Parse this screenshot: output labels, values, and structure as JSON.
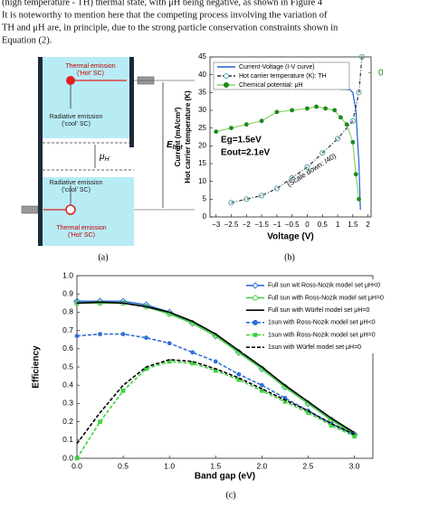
{
  "text": {
    "lines": [
      "(high temperature - TH) thermal state, with μH being negative, as shown in Figure 4",
      "It is noteworthy to mention here that the competing process involving the variation of",
      "TH and μH are, in principle, due to the strong particle conservation constraints shown in",
      "Equation (2)."
    ]
  },
  "panel_a": {
    "top_thermal": [
      "Thermal emission",
      "('Hot' SC)"
    ],
    "top_radiative": [
      "Radiative emission",
      "('cool' SC)"
    ],
    "mu": {
      "base": "μ",
      "sub": "H"
    },
    "ehot": {
      "base": "E",
      "sub": "hot"
    },
    "bottom_radiative": [
      "Radiative emission",
      "('cool' SC)"
    ],
    "bottom_thermal": [
      "Thermal emission",
      "('Hot' SC)"
    ],
    "caption": "(a)"
  },
  "chart_data": [
    {
      "type": "line",
      "caption": "(b)",
      "xlabel": "Voltage (V)",
      "ylabel": [
        "Current (mA/cm²)",
        "Hot carrier temperature (K)"
      ],
      "xlim": [
        -3.2,
        2.1
      ],
      "ylim": [
        0,
        45
      ],
      "y2lim": [
        -0.9,
        0.1
      ],
      "xticks": [
        {
          "value": -3,
          "label": "−3"
        },
        {
          "value": -2.5,
          "label": "−2.5"
        },
        {
          "value": -2,
          "label": "−2"
        },
        {
          "value": -1.5,
          "label": "−1.5"
        },
        {
          "value": -1,
          "label": "−1"
        },
        {
          "value": -0.5,
          "label": "−0.5"
        },
        0,
        0.5,
        1,
        1.5,
        2
      ],
      "yticks": [
        0,
        5,
        10,
        15,
        20,
        25,
        30,
        35,
        40,
        45
      ],
      "y2ticks": [
        0
      ],
      "annotations": [
        "Eg=1.5eV",
        "Eout=2.1eV",
        "(Scale down: /40)"
      ],
      "series": [
        {
          "name": "Current-Voltage (I-V curve)",
          "color": "#1f5fd6",
          "dash": false,
          "marker": null,
          "x": [
            -3,
            -2,
            -1,
            0,
            1,
            1.4,
            1.5,
            1.6,
            1.7,
            1.75
          ],
          "values": [
            36,
            36,
            36,
            36,
            36,
            35.8,
            35,
            30,
            15,
            2
          ]
        },
        {
          "name": "Hot carrier temperature (K): TH",
          "color": "#333333",
          "dash": true,
          "marker": "circle-open",
          "markercolor": "#5aa6b0",
          "x": [
            -2.5,
            -2,
            -1.5,
            -1,
            -0.5,
            0,
            0.5,
            1,
            1.5,
            1.7,
            1.8
          ],
          "values": [
            4,
            5,
            6,
            8,
            11,
            14,
            18,
            22,
            27,
            35,
            45
          ]
        },
        {
          "name": "Chemical potential: μH",
          "color": "#8bd16a",
          "dash": false,
          "marker": "circle",
          "markercolor": "#1a8a1a",
          "axis": "y2",
          "x": [
            -3,
            -2.5,
            -2,
            -1.5,
            -1,
            -0.5,
            0,
            0.3,
            0.6,
            0.9,
            1.1,
            1.3,
            1.5,
            1.6,
            1.7
          ],
          "values": [
            -0.367,
            -0.344,
            -0.322,
            -0.3,
            -0.244,
            -0.233,
            -0.222,
            -0.211,
            -0.222,
            -0.233,
            -0.278,
            -0.322,
            -0.433,
            -0.633,
            -0.789
          ]
        }
      ]
    },
    {
      "type": "line",
      "caption": "(c)",
      "xlabel": "Band gap (eV)",
      "ylabel": [
        "Efficiency"
      ],
      "xlim": [
        0,
        3.2
      ],
      "ylim": [
        0,
        1
      ],
      "xticks": [
        {
          "value": 0,
          "label": "0.0"
        },
        0.5,
        {
          "value": 1,
          "label": "1.0"
        },
        1.5,
        {
          "value": 2,
          "label": "2.0"
        },
        2.5,
        {
          "value": 3,
          "label": "3.0"
        }
      ],
      "yticks": [
        {
          "value": 0,
          "label": "0.0"
        },
        0.1,
        0.2,
        0.3,
        0.4,
        0.5,
        0.6,
        0.7,
        0.8,
        0.9,
        {
          "value": 1,
          "label": "1.0"
        }
      ],
      "x": [
        0,
        0.25,
        0.5,
        0.75,
        1,
        1.25,
        1.5,
        1.75,
        2,
        2.25,
        2.5,
        2.75,
        3
      ],
      "series": [
        {
          "name": "Full sun wit Ross-Nozik model set μH<0",
          "color": "#2f6fd8",
          "dash": false,
          "marker": "diamond-open",
          "values": [
            0.86,
            0.86,
            0.86,
            0.84,
            0.8,
            0.74,
            0.67,
            0.58,
            0.49,
            0.39,
            0.3,
            0.21,
            0.13
          ]
        },
        {
          "name": "Full sun with Ross-Nozik model set μH=0",
          "color": "#3ed13e",
          "dash": false,
          "marker": "circle-open",
          "values": [
            0.85,
            0.85,
            0.85,
            0.83,
            0.79,
            0.74,
            0.67,
            0.58,
            0.49,
            0.39,
            0.3,
            0.21,
            0.13
          ]
        },
        {
          "name": "Full sun with Würfel model set μH=0",
          "color": "#000000",
          "dash": false,
          "marker": null,
          "values": [
            0.85,
            0.855,
            0.85,
            0.83,
            0.8,
            0.75,
            0.68,
            0.59,
            0.5,
            0.4,
            0.31,
            0.22,
            0.14
          ]
        },
        {
          "name": "1sun with Ross-Nozik model set μH<0",
          "color": "#2f6fd8",
          "dash": true,
          "marker": "circle",
          "values": [
            0.67,
            0.68,
            0.68,
            0.66,
            0.63,
            0.58,
            0.53,
            0.46,
            0.4,
            0.33,
            0.26,
            0.19,
            0.13
          ]
        },
        {
          "name": "1sun with Ross-Nozik model set μH=0",
          "color": "#3ed13e",
          "dash": true,
          "marker": "square",
          "values": [
            0,
            0.2,
            0.37,
            0.49,
            0.53,
            0.52,
            0.48,
            0.43,
            0.37,
            0.31,
            0.25,
            0.18,
            0.12
          ]
        },
        {
          "name": "1sun with Würfel model set μH=0",
          "color": "#000000",
          "dash": true,
          "marker": null,
          "values": [
            0.08,
            0.25,
            0.4,
            0.5,
            0.54,
            0.53,
            0.49,
            0.44,
            0.38,
            0.32,
            0.26,
            0.19,
            0.13
          ]
        }
      ]
    }
  ]
}
